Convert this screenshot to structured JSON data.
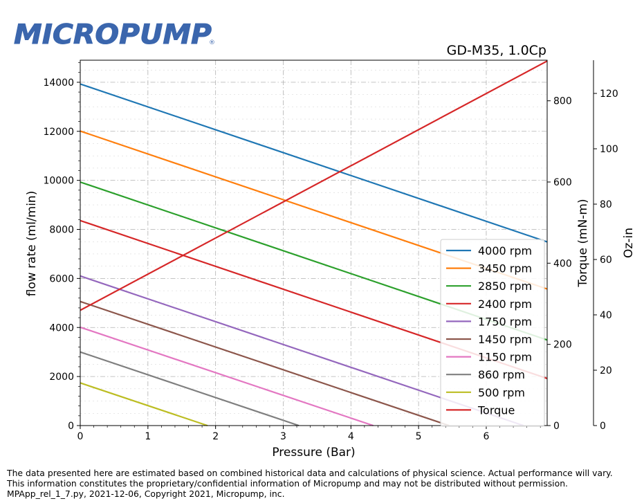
{
  "brand": {
    "logo_text": "MICROPUMP",
    "logo_color": "#3b66ad"
  },
  "chart_data": {
    "type": "line",
    "title": "GD-M35,  1.0Cp",
    "xlabel": "Pressure (Bar)",
    "ylabel": "flow rate (ml/min)",
    "y2label": "Torque (mN-m)",
    "y3label": "Oz-in",
    "xlim": [
      0,
      6.9
    ],
    "ylim": [
      0,
      14900
    ],
    "y2lim": [
      0,
      900
    ],
    "y3lim": [
      0,
      132
    ],
    "xticks": [
      "0",
      "1",
      "2",
      "3",
      "4",
      "5",
      "6"
    ],
    "yticks": [
      "0",
      "2000",
      "4000",
      "6000",
      "8000",
      "10000",
      "12000",
      "14000"
    ],
    "y2ticks": [
      "0",
      "200",
      "400",
      "600",
      "800"
    ],
    "y3ticks": [
      "0",
      "20",
      "40",
      "60",
      "80",
      "100",
      "120"
    ],
    "grid": true,
    "legend_position": "lower-right",
    "series": [
      {
        "name": "4000 rpm",
        "color": "#1f77b4",
        "axis": "flow",
        "x": [
          0,
          6.9
        ],
        "y": [
          13930,
          7490
        ]
      },
      {
        "name": "3450 rpm",
        "color": "#ff7f0e",
        "axis": "flow",
        "x": [
          0,
          6.9
        ],
        "y": [
          12010,
          5570
        ]
      },
      {
        "name": "2850 rpm",
        "color": "#2ca02c",
        "axis": "flow",
        "x": [
          0,
          6.9
        ],
        "y": [
          9930,
          3490
        ]
      },
      {
        "name": "2400 rpm",
        "color": "#d62728",
        "axis": "flow",
        "x": [
          0,
          6.9
        ],
        "y": [
          8360,
          1920
        ]
      },
      {
        "name": "1750 rpm",
        "color": "#9467bd",
        "axis": "flow",
        "x": [
          0,
          6.55
        ],
        "y": [
          6100,
          0
        ]
      },
      {
        "name": "1450 rpm",
        "color": "#8c564b",
        "axis": "flow",
        "x": [
          0,
          5.45
        ],
        "y": [
          5060,
          0
        ]
      },
      {
        "name": "1150 rpm",
        "color": "#e377c2",
        "axis": "flow",
        "x": [
          0,
          4.33
        ],
        "y": [
          4010,
          0
        ]
      },
      {
        "name": "860 rpm",
        "color": "#7f7f7f",
        "axis": "flow",
        "x": [
          0,
          3.23
        ],
        "y": [
          3000,
          0
        ]
      },
      {
        "name": "500 rpm",
        "color": "#bcbd22",
        "axis": "flow",
        "x": [
          0,
          1.88
        ],
        "y": [
          1740,
          0
        ]
      },
      {
        "name": "Torque",
        "color": "#d62728",
        "axis": "torque",
        "x": [
          0,
          6.9
        ],
        "y": [
          284,
          898
        ]
      }
    ]
  },
  "footer": {
    "line1": "The data presented here are estimated based on combined historical data and calculations of physical science.  Actual performance will vary.",
    "line2": "This information constitutes the proprietary/confidential information of Micropump and may not be distributed without permission.",
    "line3": "MPApp_rel_1_7.py, 2021-12-06, Copyright 2021, Micropump, inc."
  }
}
